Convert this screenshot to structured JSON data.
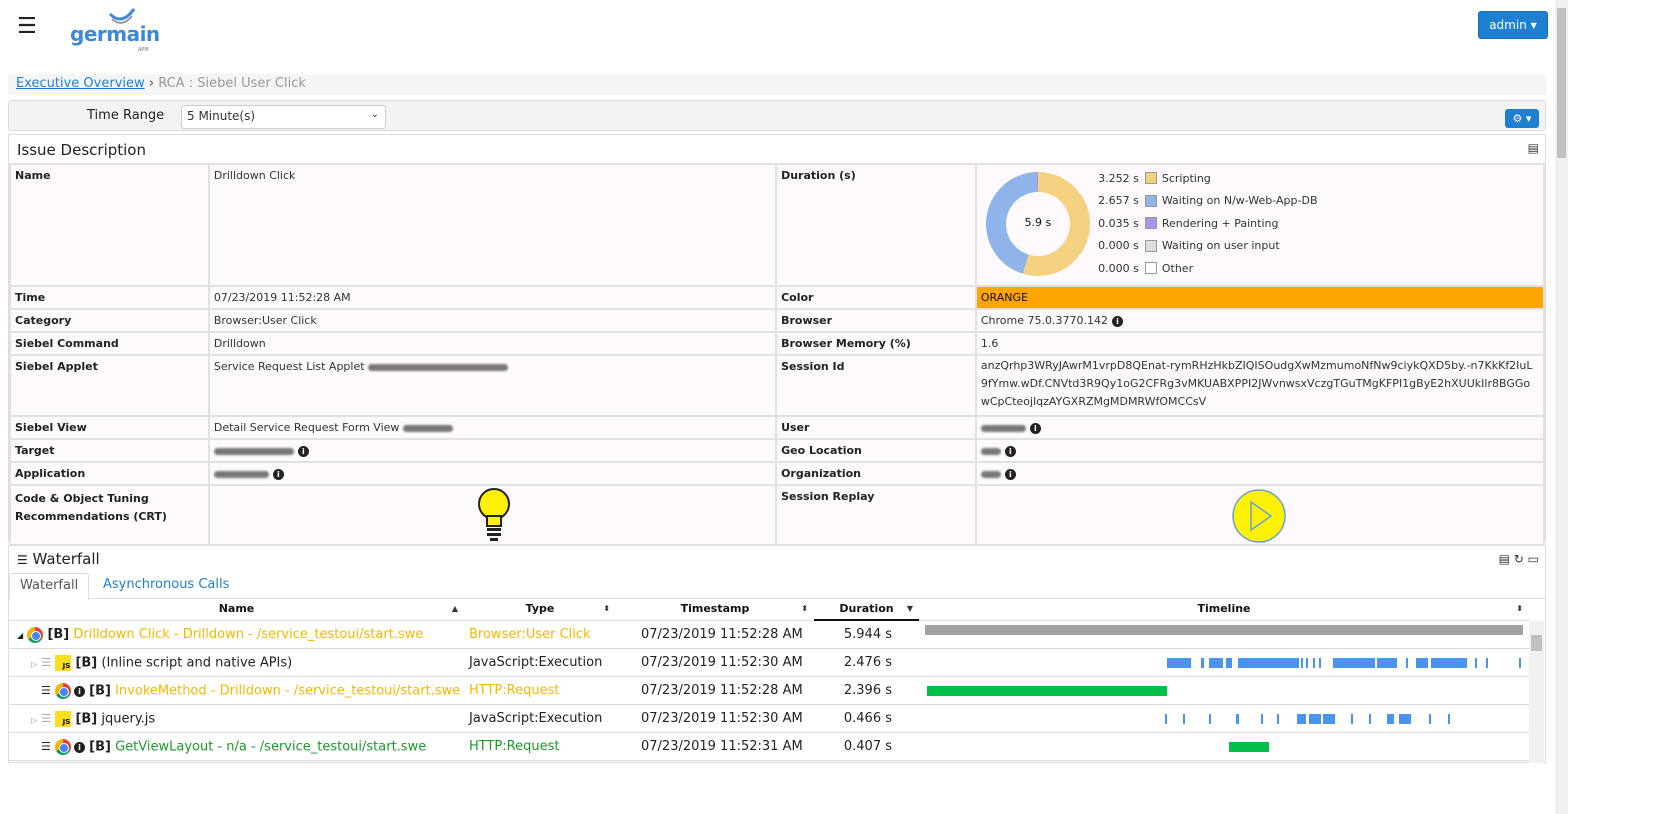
{
  "header": {
    "logo_text": "germain",
    "logo_sub": "APM",
    "admin_label": "admin",
    "menu_icon": "hamburger-icon"
  },
  "breadcrumb": {
    "link": "Executive Overview",
    "separator": "›",
    "current": "RCA : Siebel User Click"
  },
  "toolbar": {
    "time_range_label": "Time Range",
    "time_range_value": "5 Minute(s)",
    "settings_icon": "gear-icon"
  },
  "issue": {
    "title": "Issue Description",
    "name_label": "Name",
    "name": "Drilldown Click",
    "duration_label": "Duration (s)",
    "donut_center": "5.9 s",
    "breakdown": [
      {
        "value": "3.252 s",
        "seconds": 3.252,
        "label": "Scripting",
        "color": "#f5d281"
      },
      {
        "value": "2.657 s",
        "seconds": 2.657,
        "label": "Waiting on N/w-Web-App-DB",
        "color": "#8fb4ea"
      },
      {
        "value": "0.035 s",
        "seconds": 0.035,
        "label": "Rendering + Painting",
        "color": "#a995e8"
      },
      {
        "value": "0.000 s",
        "seconds": 0,
        "label": "Waiting on user input",
        "color": "#dddddd"
      },
      {
        "value": "0.000 s",
        "seconds": 0,
        "label": "Other",
        "color": "#ffffff"
      }
    ],
    "time_label": "Time",
    "time": "07/23/2019 11:52:28 AM",
    "color_label": "Color",
    "color": "ORANGE",
    "color_hex": "#ffa500",
    "category_label": "Category",
    "category": "Browser:User Click",
    "browser_label": "Browser",
    "browser": "Chrome 75.0.3770.142",
    "command_label": "Siebel Command",
    "command": "Drilldown",
    "memory_label": "Browser Memory (%)",
    "memory": "1.6",
    "applet_label": "Siebel Applet",
    "applet": "Service Request List Applet",
    "session_label": "Session Id",
    "session": "anzQrhp3WRyJAwrM1vrpD8QEnat-rymRHzHkbZIQISOudgXwMzmumoNfNw9ciykQXD5by.-n7KkKf2IuL9fYmw.wDf.CNVtd3R9Qy1oG2CFRg3vMKUABXPPI2JWvnwsxVczgTGuTMgKFPI1gByE2hXUUkIlr8BGGowCpCteojlqzAYGXRZMgMDMRWfOMCCsV",
    "view_label": "Siebel View",
    "view": "Detail Service Request Form View",
    "user_label": "User",
    "target_label": "Target",
    "geo_label": "Geo Location",
    "application_label": "Application",
    "org_label": "Organization",
    "crt_label": "Code & Object Tuning Recommendations (CRT)",
    "replay_label": "Session Replay"
  },
  "waterfall": {
    "title": "Waterfall",
    "tabs": [
      {
        "label": "Waterfall",
        "active": true
      },
      {
        "label": "Asynchronous Calls",
        "active": false
      }
    ],
    "columns": [
      "Name",
      "Type",
      "Timestamp",
      "Duration",
      "Timeline"
    ],
    "total_seconds": 5.944,
    "rows": [
      {
        "prefix": "[B]",
        "name": "Drilldown Click - Drilldown - /service_testoui/start.swe",
        "type": "Browser:User Click",
        "timestamp": "07/23/2019 11:52:28 AM",
        "duration": "5.944 s",
        "color": "#f5b800",
        "icon": "chrome",
        "bar_color": "#a3a3a3",
        "segments": [
          [
            0,
            5.944
          ]
        ]
      },
      {
        "prefix": "[B]",
        "name": "(Inline script and native APIs)",
        "type": "JavaScript:Execution",
        "timestamp": "07/23/2019 11:52:30 AM",
        "duration": "2.476 s",
        "color": "#222222",
        "icon": "js",
        "bar_color": "#4a94ef",
        "segments": [
          [
            2.41,
            2.64
          ],
          [
            2.74,
            2.77
          ],
          [
            2.82,
            2.96
          ],
          [
            2.99,
            3.05
          ],
          [
            3.11,
            3.72
          ],
          [
            3.74,
            3.76
          ],
          [
            3.79,
            3.81
          ],
          [
            3.86,
            3.88
          ],
          [
            3.92,
            3.94
          ],
          [
            4.06,
            4.47
          ],
          [
            4.49,
            4.69
          ],
          [
            4.78,
            4.8
          ],
          [
            4.88,
            5.0
          ],
          [
            5.03,
            5.39
          ],
          [
            5.47,
            5.49
          ],
          [
            5.58,
            5.6
          ],
          [
            5.9,
            5.92
          ]
        ]
      },
      {
        "prefix": "[B]",
        "name": "InvokeMethod - Drilldown - /service_testoui/start.swe",
        "type": "HTTP:Request",
        "timestamp": "07/23/2019 11:52:28 AM",
        "duration": "2.396 s",
        "color": "#f5b800",
        "icon": "chrome",
        "bar_color": "#00c04a",
        "segments": [
          [
            0.02,
            2.41
          ]
        ]
      },
      {
        "prefix": "[B]",
        "name": "jquery.js",
        "type": "JavaScript:Execution",
        "timestamp": "07/23/2019 11:52:30 AM",
        "duration": "0.466 s",
        "color": "#222222",
        "icon": "js",
        "bar_color": "#4a94ef",
        "segments": [
          [
            2.39,
            2.41
          ],
          [
            2.56,
            2.58
          ],
          [
            2.82,
            2.84
          ],
          [
            3.09,
            3.12
          ],
          [
            3.34,
            3.36
          ],
          [
            3.5,
            3.52
          ],
          [
            3.7,
            3.79
          ],
          [
            3.82,
            3.94
          ],
          [
            3.96,
            4.08
          ],
          [
            4.23,
            4.25
          ],
          [
            4.41,
            4.43
          ],
          [
            4.59,
            4.66
          ],
          [
            4.71,
            4.83
          ],
          [
            5.01,
            5.03
          ],
          [
            5.2,
            5.22
          ]
        ]
      },
      {
        "prefix": "[B]",
        "name": "GetViewLayout - n/a - /service_testoui/start.swe",
        "type": "HTTP:Request",
        "timestamp": "07/23/2019 11:52:31 AM",
        "duration": "0.407 s",
        "color": "#1a9a2a",
        "icon": "chrome",
        "bar_color": "#00c04a",
        "segments": [
          [
            3.02,
            3.42
          ]
        ]
      }
    ]
  }
}
